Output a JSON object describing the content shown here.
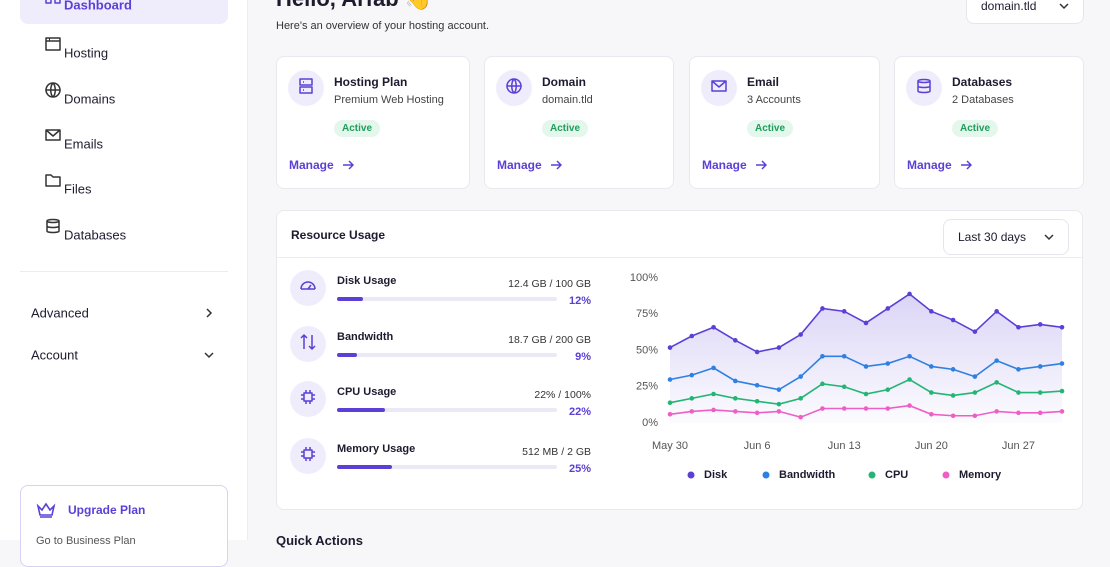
{
  "sidebar": {
    "nav": [
      "Dashboard",
      "Hosting",
      "Domains",
      "Emails",
      "Files",
      "Databases"
    ],
    "secondary": [
      "Advanced",
      "Account"
    ],
    "upgrade": {
      "title": "Upgrade Plan",
      "text": "Go to Business Plan"
    }
  },
  "header": {
    "title": "Hello, Arfab 👋",
    "subtitle": "Here's an overview of your hosting account.",
    "domain_select": "domain.tld"
  },
  "cards": [
    {
      "title": "Hosting Plan",
      "subtitle": "Premium Web Hosting",
      "status": "Active",
      "action": "Manage"
    },
    {
      "title": "Domain",
      "subtitle": "domain.tld",
      "status": "Active",
      "action": "Manage"
    },
    {
      "title": "Email",
      "subtitle": "3 Accounts",
      "status": "Active",
      "action": "Manage"
    },
    {
      "title": "Databases",
      "subtitle": "2 Databases",
      "status": "Active",
      "action": "Manage"
    }
  ],
  "usage": {
    "title": "Resource Usage",
    "range_select": "Last 30 days",
    "items": [
      {
        "name": "Disk Usage",
        "detail": "12.4 GB / 100 GB",
        "value": 12,
        "value_label": "12%"
      },
      {
        "name": "Bandwidth",
        "detail": "18.7 GB / 200 GB",
        "value": 9,
        "value_label": "9%"
      },
      {
        "name": "CPU Usage",
        "detail": "22% / 100%",
        "value": 22,
        "value_label": "22%"
      },
      {
        "name": "Memory Usage",
        "detail": "512 MB / 2 GB",
        "value": 25,
        "value_label": "25%"
      }
    ]
  },
  "quick_actions": {
    "title": "Quick Actions"
  },
  "chart_data": {
    "type": "line",
    "categories": [
      "May 30",
      null,
      null,
      null,
      "Jun 6",
      null,
      null,
      null,
      "Jun 13",
      null,
      null,
      null,
      "Jun 20",
      null,
      null,
      null,
      "Jun 27",
      null,
      null
    ],
    "series": [
      {
        "name": "Disk",
        "color": "#5b3fd6",
        "area": true,
        "values": [
          52,
          60,
          66,
          57,
          49,
          52,
          61,
          79,
          77,
          69,
          79,
          89,
          77,
          71,
          63,
          77,
          66,
          68,
          66
        ]
      },
      {
        "name": "Bandwidth",
        "color": "#2f80e0",
        "values": [
          30,
          33,
          38,
          29,
          26,
          23,
          32,
          46,
          46,
          39,
          41,
          46,
          39,
          37,
          32,
          43,
          37,
          39,
          41
        ]
      },
      {
        "name": "CPU",
        "color": "#22b573",
        "values": [
          14,
          17,
          20,
          17,
          15,
          13,
          17,
          27,
          25,
          20,
          23,
          30,
          21,
          19,
          21,
          28,
          21,
          21,
          22
        ]
      },
      {
        "name": "Memory",
        "color": "#ee5fc6",
        "values": [
          6,
          8,
          9,
          8,
          7,
          8,
          4,
          10,
          10,
          10,
          10,
          12,
          6,
          5,
          5,
          8,
          7,
          7,
          8
        ]
      }
    ],
    "ylim": [
      0,
      100
    ],
    "yticks": [
      {
        "value": 0,
        "label": "0%"
      },
      {
        "value": 25,
        "label": "25%"
      },
      {
        "value": 50,
        "label": "50%"
      },
      {
        "value": 75,
        "label": "75%"
      },
      {
        "value": 100,
        "label": "100%"
      }
    ],
    "legend": "bottom"
  }
}
